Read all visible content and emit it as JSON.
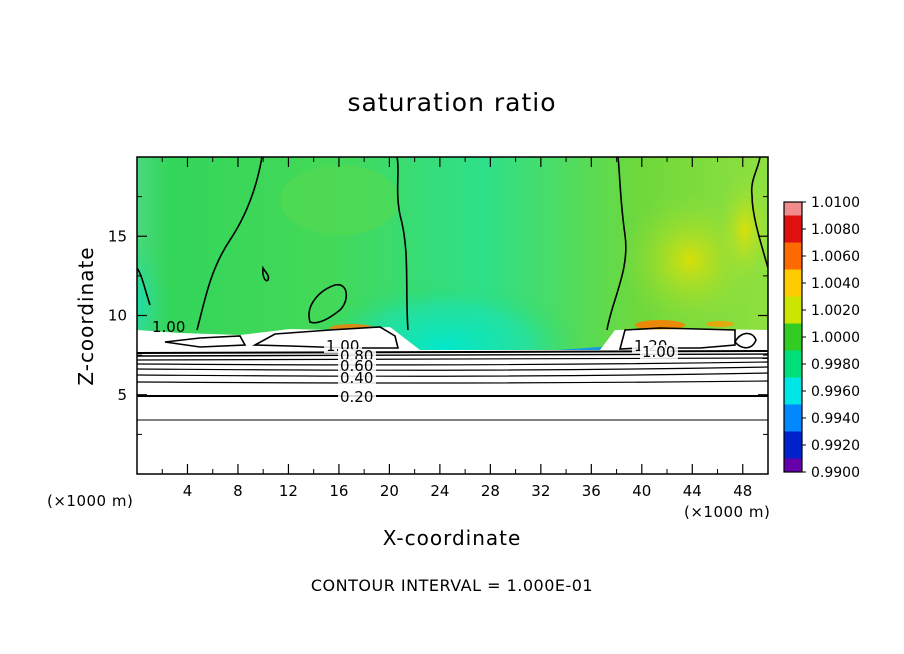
{
  "chart_data": {
    "type": "heatmap",
    "title": "saturation ratio",
    "xlabel": "X-coordinate",
    "ylabel": "Z-coordinate",
    "x_unit": "(×1000 m)",
    "y_unit": "(×1000 m)",
    "xlim": [
      0,
      50
    ],
    "ylim": [
      0,
      20
    ],
    "x_ticks": [
      "4",
      "8",
      "12",
      "16",
      "20",
      "24",
      "28",
      "32",
      "36",
      "40",
      "44",
      "48"
    ],
    "y_ticks": [
      "5",
      "10",
      "15"
    ],
    "footer": "CONTOUR INTERVAL = 1.000E-01",
    "colorbar": {
      "labels": [
        "1.0100",
        "1.0080",
        "1.0060",
        "1.0040",
        "1.0020",
        "1.0000",
        "0.9980",
        "0.9960",
        "0.9940",
        "0.9920",
        "0.9900"
      ],
      "colors": [
        "#f08c8c",
        "#e01010",
        "#ff6a00",
        "#ffcc00",
        "#cce600",
        "#33cc22",
        "#00e07a",
        "#00e6e6",
        "#0088ff",
        "#0022cc",
        "#6600aa"
      ]
    },
    "contour_labels": [
      "1.00",
      "1.00",
      "0.80",
      "0.60",
      "0.40",
      "0.20",
      "1.20",
      "1.00"
    ]
  }
}
